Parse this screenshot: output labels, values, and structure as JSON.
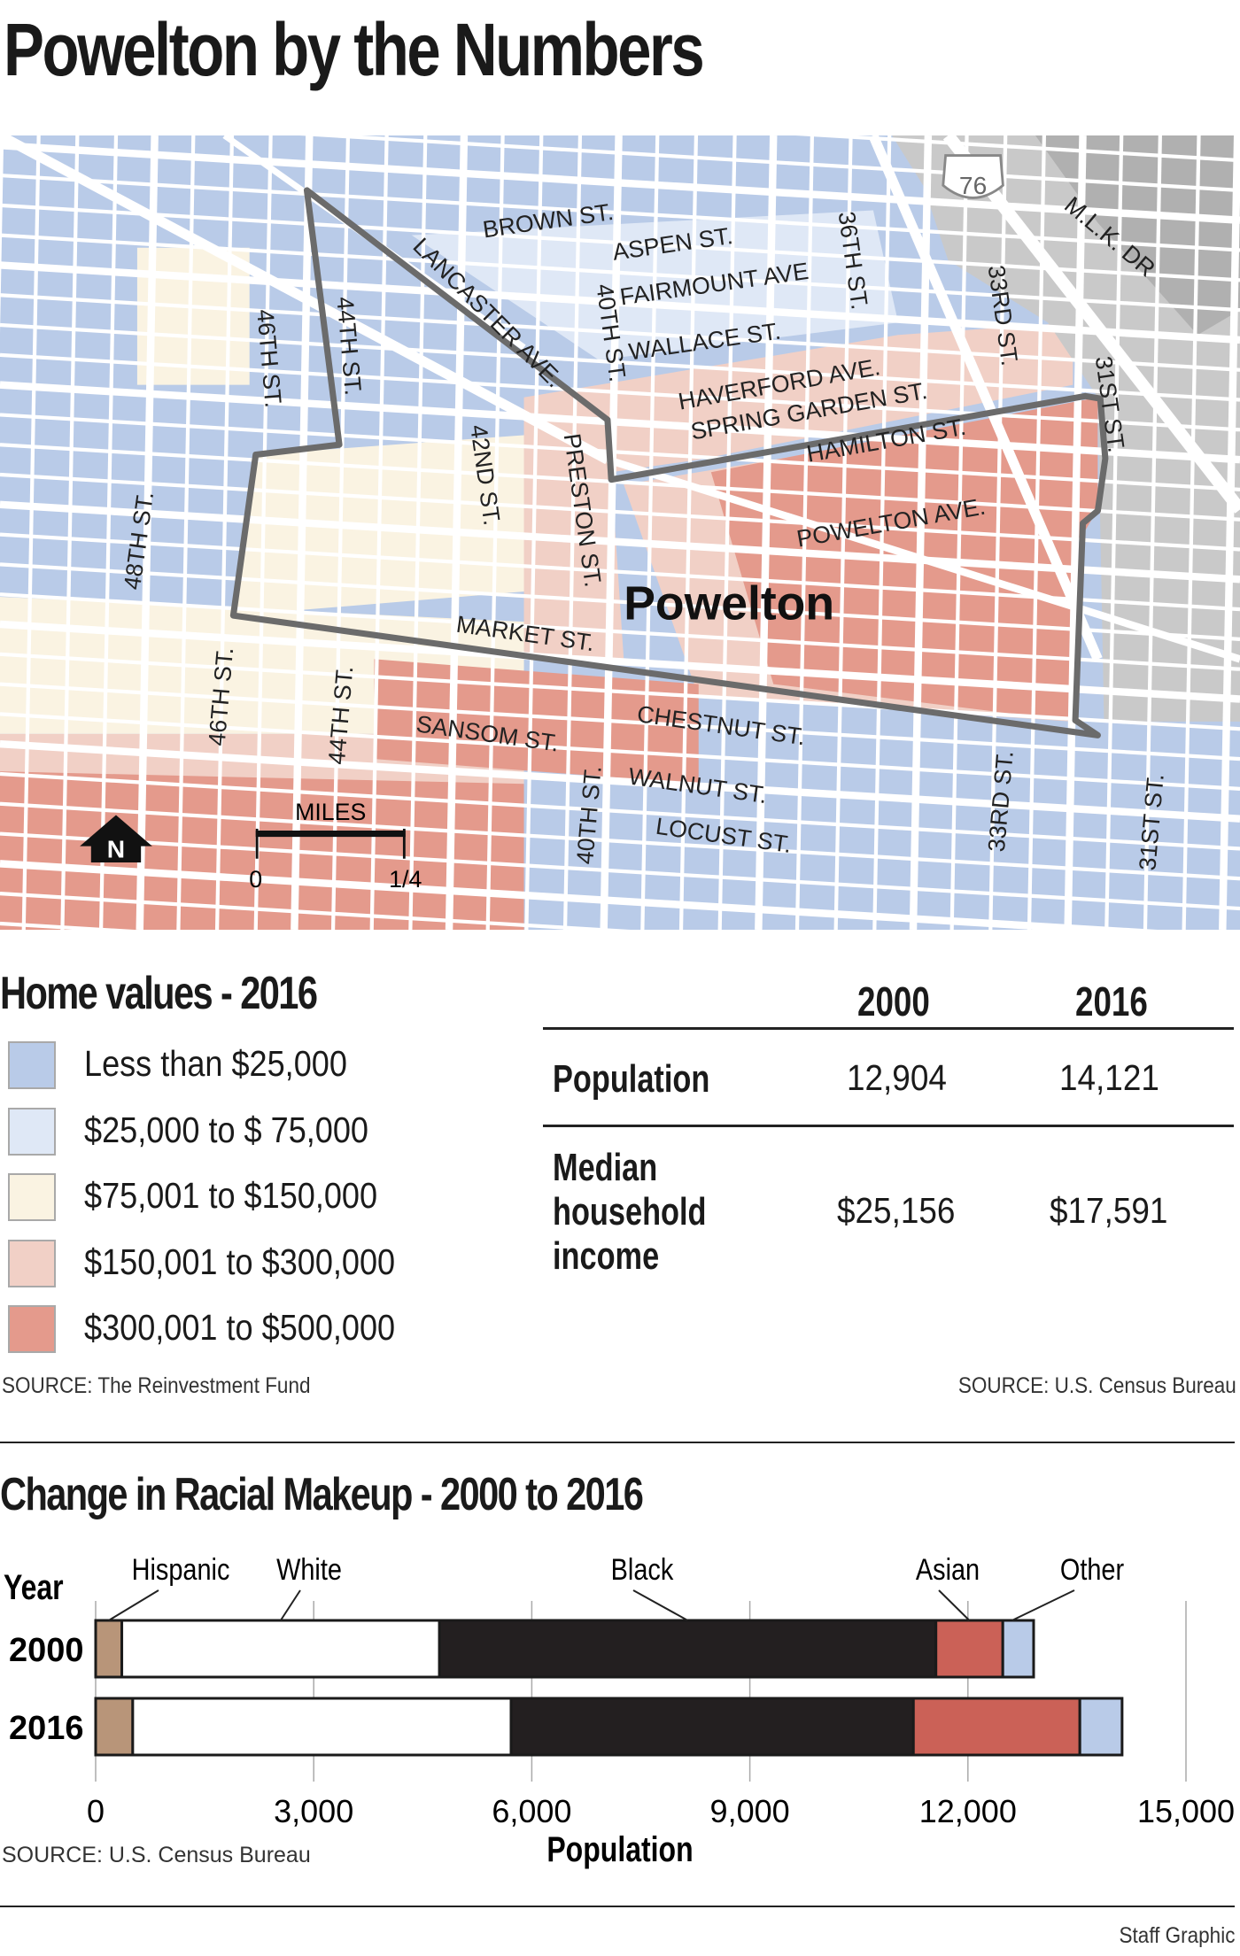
{
  "title": "Powelton by the Numbers",
  "map": {
    "neighborhood_label": "Powelton",
    "highway_shield": "76",
    "north_label": "N",
    "scale": {
      "label": "MILES",
      "start": "0",
      "end": "1/4"
    },
    "streets": [
      "BROWN ST.",
      "ASPEN ST.",
      "40TH ST.",
      "FAIRMOUNT AVE",
      "WALLACE ST.",
      "36TH ST.",
      "33RD ST.",
      "M.L.K. DR",
      "LANCASTER AVE.",
      "46TH ST.",
      "44TH ST.",
      "HAVERFORD AVE.",
      "SPRING GARDEN ST.",
      "HAMILTON ST.",
      "31ST ST.",
      "42ND ST.",
      "PRESTON ST.",
      "POWELTON AVE.",
      "48TH ST.",
      "MARKET ST.",
      "CHESTNUT ST.",
      "46TH ST.",
      "44TH ST.",
      "SANSOM ST.",
      "40TH ST.",
      "WALNUT ST.",
      "LOCUST ST.",
      "33RD ST.",
      "31ST ST."
    ]
  },
  "home_values": {
    "title": "Home values - 2016",
    "legend": [
      {
        "label": "Less than $25,000",
        "color": "#b9cbe8"
      },
      {
        "label": "$25,000 to $ 75,000",
        "color": "#dfe8f6"
      },
      {
        "label": "$75,001 to $150,000",
        "color": "#faf3e2"
      },
      {
        "label": "$150,001 to $300,000",
        "color": "#f1d0c6"
      },
      {
        "label": "$300,001 to $500,000",
        "color": "#e49a8c"
      }
    ],
    "source": "SOURCE: The Reinvestment Fund"
  },
  "stats_table": {
    "columns": [
      "2000",
      "2016"
    ],
    "rows": [
      {
        "label": "Population",
        "values": [
          "12,904",
          "14,121"
        ]
      },
      {
        "label": "Median household income",
        "label_lines": [
          "Median",
          "household",
          "income"
        ],
        "values": [
          "$25,156",
          "$17,591"
        ]
      }
    ],
    "source": "SOURCE: U.S. Census Bureau"
  },
  "chart_data": {
    "type": "bar",
    "orientation": "horizontal",
    "stacked": true,
    "title": "Change in Racial Makeup - 2000 to 2016",
    "ylabel": "Year",
    "xlabel": "Population",
    "categories": [
      "2000",
      "2016"
    ],
    "xlim": [
      0,
      15000
    ],
    "xticks": [
      "0",
      "3,000",
      "6,000",
      "9,000",
      "12,000",
      "15,000"
    ],
    "xtick_values": [
      0,
      3000,
      6000,
      9000,
      12000,
      15000
    ],
    "grid": true,
    "series": [
      {
        "name": "Hispanic",
        "values": [
          360,
          510
        ],
        "color": "#b89579"
      },
      {
        "name": "White",
        "values": [
          4370,
          5205
        ],
        "color": "#ffffff"
      },
      {
        "name": "Black",
        "values": [
          6830,
          5535
        ],
        "color": "#231f20"
      },
      {
        "name": "Asian",
        "values": [
          920,
          2290
        ],
        "color": "#cb6157"
      },
      {
        "name": "Other",
        "values": [
          424,
          581
        ],
        "color": "#b9cbe8"
      }
    ],
    "source": "SOURCE: U.S. Census Bureau"
  },
  "credit": "Staff Graphic"
}
